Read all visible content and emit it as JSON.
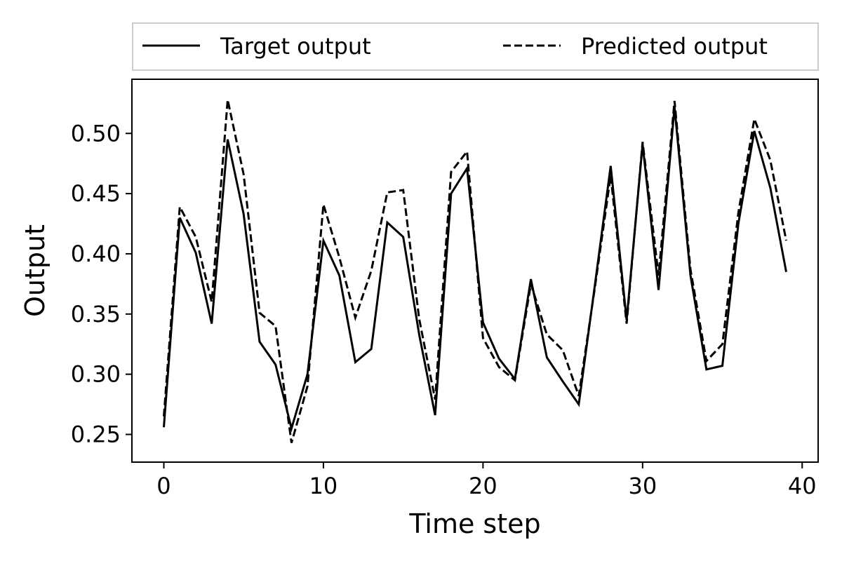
{
  "chart_data": {
    "type": "line",
    "title": "",
    "xlabel": "Time step",
    "ylabel": "Output",
    "xlim": [
      -2,
      41
    ],
    "ylim": [
      0.227,
      0.545
    ],
    "xticks": [
      0,
      10,
      20,
      30,
      40
    ],
    "xtick_labels": [
      "0",
      "10",
      "20",
      "30",
      "40"
    ],
    "yticks": [
      0.25,
      0.3,
      0.35,
      0.4,
      0.45,
      0.5
    ],
    "ytick_labels": [
      "0.25",
      "0.30",
      "0.35",
      "0.40",
      "0.45",
      "0.50"
    ],
    "grid": false,
    "legend_placement": "top, outside plot",
    "x": [
      0,
      1,
      2,
      3,
      4,
      5,
      6,
      7,
      8,
      9,
      10,
      11,
      12,
      13,
      14,
      15,
      16,
      17,
      18,
      19,
      20,
      21,
      22,
      23,
      24,
      25,
      26,
      27,
      28,
      29,
      30,
      31,
      32,
      33,
      34,
      35,
      36,
      37,
      38,
      39
    ],
    "series": [
      {
        "name": "Target output",
        "style": "solid",
        "color": "#000000",
        "values": [
          0.256,
          0.43,
          0.401,
          0.342,
          0.495,
          0.433,
          0.327,
          0.308,
          0.255,
          0.3,
          0.411,
          0.382,
          0.31,
          0.321,
          0.426,
          0.414,
          0.333,
          0.266,
          0.45,
          0.471,
          0.343,
          0.313,
          0.296,
          0.379,
          0.314,
          0.294,
          0.275,
          0.373,
          0.473,
          0.345,
          0.491,
          0.37,
          0.522,
          0.382,
          0.304,
          0.307,
          0.425,
          0.502,
          0.455,
          0.385
        ]
      },
      {
        "name": "Predicted output",
        "style": "dashed",
        "color": "#000000",
        "values": [
          0.265,
          0.439,
          0.414,
          0.36,
          0.528,
          0.466,
          0.351,
          0.34,
          0.243,
          0.29,
          0.441,
          0.397,
          0.347,
          0.386,
          0.451,
          0.453,
          0.346,
          0.279,
          0.468,
          0.485,
          0.33,
          0.306,
          0.295,
          0.375,
          0.333,
          0.32,
          0.282,
          0.371,
          0.465,
          0.342,
          0.493,
          0.382,
          0.527,
          0.387,
          0.311,
          0.325,
          0.434,
          0.512,
          0.478,
          0.411
        ]
      }
    ]
  }
}
